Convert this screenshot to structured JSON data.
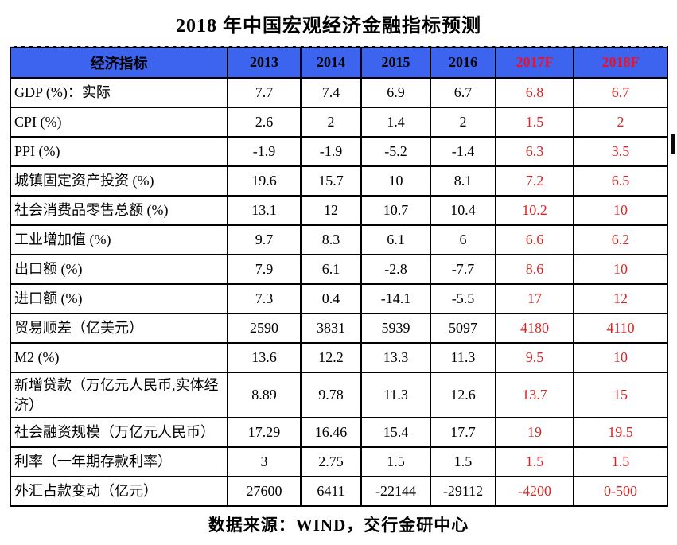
{
  "title": "2018 年中国宏观经济金融指标预测",
  "source_note": "数据来源：WIND，交行金研中心",
  "colors": {
    "header_bg": "#3c64ee",
    "header_text": "#000000",
    "forecast_header_red": "#e81230",
    "forecast_cell_red": "#d92525",
    "border": "#000000",
    "background": "#ffffff"
  },
  "table": {
    "columns": [
      {
        "key": "indicator",
        "label": "经济指标",
        "forecast": false
      },
      {
        "key": "y2013",
        "label": "2013",
        "forecast": false
      },
      {
        "key": "y2014",
        "label": "2014",
        "forecast": false
      },
      {
        "key": "y2015",
        "label": "2015",
        "forecast": false
      },
      {
        "key": "y2016",
        "label": "2016",
        "forecast": false
      },
      {
        "key": "f2017",
        "label": "2017F",
        "forecast": true
      },
      {
        "key": "f2018",
        "label": "2018F",
        "forecast": true
      }
    ],
    "rows": [
      {
        "indicator": "GDP (%)：实际",
        "values": [
          "7.7",
          "7.4",
          "6.9",
          "6.7",
          "6.8",
          "6.7"
        ]
      },
      {
        "indicator": "CPI (%)",
        "values": [
          "2.6",
          "2",
          "1.4",
          "2",
          "1.5",
          "2"
        ]
      },
      {
        "indicator": "PPI (%)",
        "values": [
          "-1.9",
          "-1.9",
          "-5.2",
          "-1.4",
          "6.3",
          "3.5"
        ]
      },
      {
        "indicator": "城镇固定资产投资 (%)",
        "values": [
          "19.6",
          "15.7",
          "10",
          "8.1",
          "7.2",
          "6.5"
        ]
      },
      {
        "indicator": "社会消费品零售总额 (%)",
        "values": [
          "13.1",
          "12",
          "10.7",
          "10.4",
          "10.2",
          "10"
        ]
      },
      {
        "indicator": "工业增加值 (%)",
        "values": [
          "9.7",
          "8.3",
          "6.1",
          "6",
          "6.6",
          "6.2"
        ]
      },
      {
        "indicator": "出口额 (%)",
        "values": [
          "7.9",
          "6.1",
          "-2.8",
          "-7.7",
          "8.6",
          "10"
        ]
      },
      {
        "indicator": "进口额 (%)",
        "values": [
          "7.3",
          "0.4",
          "-14.1",
          "-5.5",
          "17",
          "12"
        ]
      },
      {
        "indicator": "贸易顺差（亿美元）",
        "values": [
          "2590",
          "3831",
          "5939",
          "5097",
          "4180",
          "4110"
        ]
      },
      {
        "indicator": "M2 (%)",
        "values": [
          "13.6",
          "12.2",
          "13.3",
          "11.3",
          "9.5",
          "10"
        ]
      },
      {
        "indicator": "新增贷款（万亿元人民币,实体经济）",
        "values": [
          "8.89",
          "9.78",
          "11.3",
          "12.6",
          "13.7",
          "15"
        ],
        "tall": true
      },
      {
        "indicator": "社会融资规模（万亿元人民币）",
        "values": [
          "17.29",
          "16.46",
          "15.4",
          "17.7",
          "19",
          "19.5"
        ]
      },
      {
        "indicator": "利率（一年期存款利率）",
        "values": [
          "3",
          "2.75",
          "1.5",
          "1.5",
          "1.5",
          "1.5"
        ]
      },
      {
        "indicator": "外汇占款变动（亿元）",
        "values": [
          "27600",
          "6411",
          "-22144",
          "-29112",
          "-4200",
          "0-500"
        ]
      }
    ]
  }
}
